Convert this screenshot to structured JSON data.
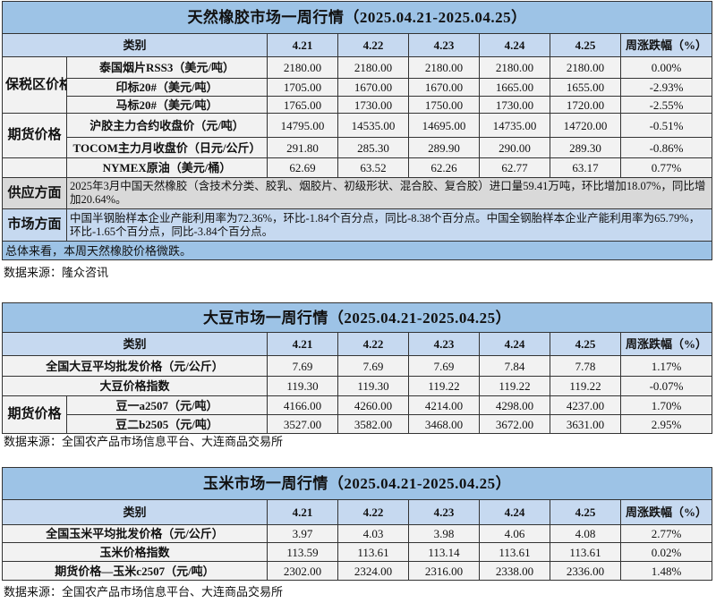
{
  "tables": [
    {
      "title": "天然橡胶市场一周行情（2025.04.21-2025.04.25）",
      "header": {
        "category": "类别",
        "dates": [
          "4.21",
          "4.22",
          "4.23",
          "4.24",
          "4.25"
        ],
        "change": "周涨跌幅（%）"
      },
      "groups": [
        {
          "label": "保税区价格",
          "rows": [
            {
              "item": "泰国烟片RSS3（美元/吨）",
              "values": [
                "2180.00",
                "2180.00",
                "2180.00",
                "2180.00",
                "2180.00"
              ],
              "change": "0.00%"
            },
            {
              "item": "印标20#（美元/吨）",
              "values": [
                "1705.00",
                "1670.00",
                "1670.00",
                "1665.00",
                "1655.00"
              ],
              "change": "-2.93%"
            },
            {
              "item": "马标20#（美元/吨）",
              "values": [
                "1765.00",
                "1730.00",
                "1750.00",
                "1730.00",
                "1720.00"
              ],
              "change": "-2.55%"
            }
          ]
        },
        {
          "label": "期货价格",
          "rows": [
            {
              "item": "沪胶主力合约收盘价（元/吨）",
              "values": [
                "14795.00",
                "14535.00",
                "14695.00",
                "14735.00",
                "14720.00"
              ],
              "change": "-0.51%"
            },
            {
              "item": "TOCOM主力月收盘价（日元/公斤）",
              "values": [
                "291.80",
                "285.30",
                "289.90",
                "290.00",
                "289.30"
              ],
              "change": "-0.86%"
            }
          ]
        },
        {
          "label": "",
          "rows": [
            {
              "item": "NYMEX原油（美元/桶）",
              "values": [
                "62.69",
                "63.52",
                "62.26",
                "62.77",
                "63.17"
              ],
              "change": "0.77%"
            }
          ]
        }
      ],
      "notes": [
        {
          "label": "供应方面",
          "text": "2025年3月中国天然橡胶（含技术分类、胶乳、烟胶片、初级形状、混合胶、复合胶）进口量59.41万吨，环比增加18.07%，同比增加20.64%。"
        },
        {
          "label": "市场方面",
          "text": "中国半钢胎样本企业产能利用率为72.36%，环比-1.84个百分点，同比-8.38个百分点。中国全钢胎样本企业产能利用率为65.79%，环比-1.65个百分点，同比-3.84个百分点。"
        }
      ],
      "summary": "总体来看，本周天然橡胶价格微跌。",
      "source": "数据来源：隆众咨讯"
    },
    {
      "title": "大豆市场一周行情（2025.04.21-2025.04.25）",
      "header": {
        "category": "类别",
        "dates": [
          "4.21",
          "4.22",
          "4.23",
          "4.24",
          "4.25"
        ],
        "change": "周涨跌幅（%）"
      },
      "groups": [
        {
          "rows": [
            {
              "item": "全国大豆平均批发价格（元/公斤）",
              "values": [
                "7.69",
                "7.69",
                "7.69",
                "7.84",
                "7.78"
              ],
              "change": "1.17%"
            }
          ]
        },
        {
          "rows": [
            {
              "item": "大豆价格指数",
              "values": [
                "119.30",
                "119.30",
                "119.22",
                "119.22",
                "119.22"
              ],
              "change": "-0.07%"
            }
          ]
        },
        {
          "label": "期货价格",
          "rows": [
            {
              "item": "豆一a2507（元/吨）",
              "values": [
                "4166.00",
                "4260.00",
                "4214.00",
                "4298.00",
                "4237.00"
              ],
              "change": "1.70%"
            },
            {
              "item": "豆二b2505（元/吨）",
              "values": [
                "3527.00",
                "3582.00",
                "3468.00",
                "3672.00",
                "3631.00"
              ],
              "change": "2.95%"
            }
          ]
        }
      ],
      "source": "数据来源：全国农产品市场信息平台、大连商品交易所"
    },
    {
      "title": "玉米市场一周行情（2025.04.21-2025.04.25）",
      "header": {
        "category": "类别",
        "dates": [
          "4.21",
          "4.22",
          "4.23",
          "4.24",
          "4.25"
        ],
        "change": "周涨跌幅（%）"
      },
      "groups": [
        {
          "rows": [
            {
              "item": "全国玉米平均批发价格（元/公斤）",
              "values": [
                "3.97",
                "4.03",
                "3.98",
                "4.06",
                "4.08"
              ],
              "change": "2.77%"
            }
          ]
        },
        {
          "rows": [
            {
              "item": "玉米价格指数",
              "values": [
                "113.59",
                "113.61",
                "113.14",
                "113.61",
                "113.61"
              ],
              "change": "0.02%"
            }
          ]
        },
        {
          "rows": [
            {
              "item": "期货价格—玉米c2507（元/吨）",
              "values": [
                "2302.00",
                "2324.00",
                "2316.00",
                "2338.00",
                "2336.00"
              ],
              "change": "1.48%"
            }
          ]
        }
      ],
      "source": "数据来源：全国农产品市场信息平台、大连商品交易所"
    }
  ]
}
